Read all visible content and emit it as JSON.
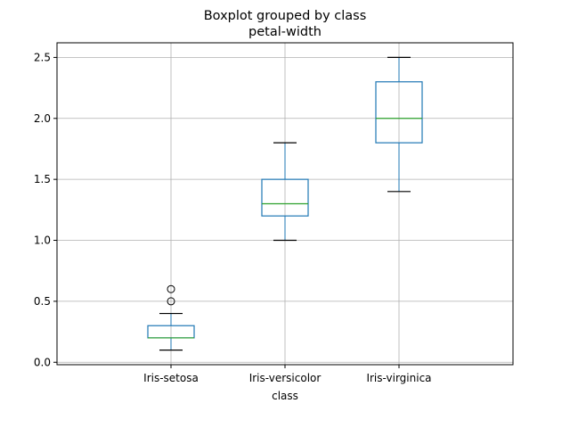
{
  "chart_data": {
    "type": "boxplot",
    "title": "Boxplot grouped by class",
    "subtitle": "petal-width",
    "xlabel": "class",
    "ylabel": "",
    "ylim": [
      -0.02,
      2.62
    ],
    "yticks": [
      "0.0",
      "0.5",
      "1.0",
      "1.5",
      "2.0",
      "2.5"
    ],
    "grid": true,
    "categories": [
      "Iris-setosa",
      "Iris-versicolor",
      "Iris-virginica"
    ],
    "boxes": [
      {
        "category": "Iris-setosa",
        "whisker_low": 0.1,
        "q1": 0.2,
        "median": 0.2,
        "q3": 0.3,
        "whisker_high": 0.4,
        "outliers": [
          0.5,
          0.6
        ]
      },
      {
        "category": "Iris-versicolor",
        "whisker_low": 1.0,
        "q1": 1.2,
        "median": 1.3,
        "q3": 1.5,
        "whisker_high": 1.8,
        "outliers": []
      },
      {
        "category": "Iris-virginica",
        "whisker_low": 1.4,
        "q1": 1.8,
        "median": 2.0,
        "q3": 2.3,
        "whisker_high": 2.5,
        "outliers": []
      }
    ],
    "colors": {
      "box": "#1f77b4",
      "median": "#2ca02c",
      "whisker_cap": "#000000",
      "grid": "#b0b0b0"
    }
  }
}
